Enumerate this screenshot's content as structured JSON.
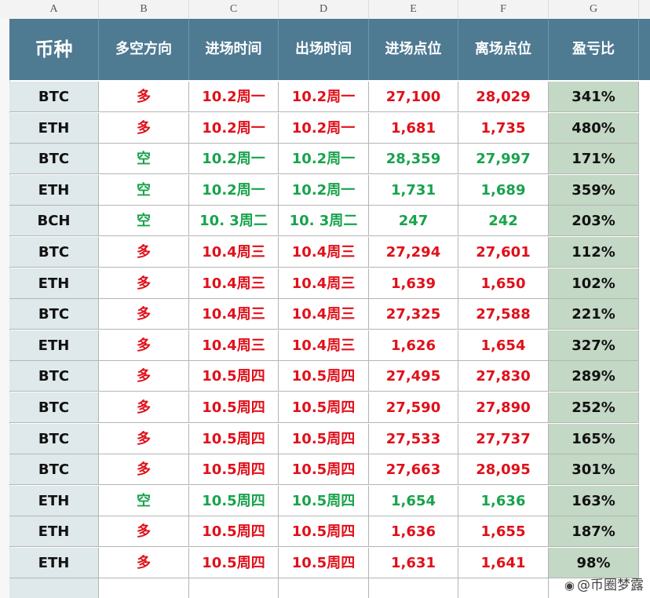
{
  "column_letters": [
    "A",
    "B",
    "C",
    "D",
    "E",
    "F",
    "G"
  ],
  "headers": [
    "币种",
    "多空方向",
    "进场时间",
    "出场时间",
    "进场点位",
    "离场点位",
    "盈亏比"
  ],
  "rows": [
    {
      "coin": "BTC",
      "direction": "多",
      "entry_time": "10.2周一",
      "exit_time": "10.2周一",
      "entry_price": "27,100",
      "exit_price": "28,029",
      "ratio": "341%",
      "side": "long"
    },
    {
      "coin": "ETH",
      "direction": "多",
      "entry_time": "10.2周一",
      "exit_time": "10.2周一",
      "entry_price": "1,681",
      "exit_price": "1,735",
      "ratio": "480%",
      "side": "long"
    },
    {
      "coin": "BTC",
      "direction": "空",
      "entry_time": "10.2周一",
      "exit_time": "10.2周一",
      "entry_price": "28,359",
      "exit_price": "27,997",
      "ratio": "171%",
      "side": "short"
    },
    {
      "coin": "ETH",
      "direction": "空",
      "entry_time": "10.2周一",
      "exit_time": "10.2周一",
      "entry_price": "1,731",
      "exit_price": "1,689",
      "ratio": "359%",
      "side": "short"
    },
    {
      "coin": "BCH",
      "direction": "空",
      "entry_time": "10. 3周二",
      "exit_time": "10. 3周二",
      "entry_price": "247",
      "exit_price": "242",
      "ratio": "203%",
      "side": "short"
    },
    {
      "coin": "BTC",
      "direction": "多",
      "entry_time": "10.4周三",
      "exit_time": "10.4周三",
      "entry_price": "27,294",
      "exit_price": "27,601",
      "ratio": "112%",
      "side": "long"
    },
    {
      "coin": "ETH",
      "direction": "多",
      "entry_time": "10.4周三",
      "exit_time": "10.4周三",
      "entry_price": "1,639",
      "exit_price": "1,650",
      "ratio": "102%",
      "side": "long"
    },
    {
      "coin": "BTC",
      "direction": "多",
      "entry_time": "10.4周三",
      "exit_time": "10.4周三",
      "entry_price": "27,325",
      "exit_price": "27,588",
      "ratio": "221%",
      "side": "long"
    },
    {
      "coin": "ETH",
      "direction": "多",
      "entry_time": "10.4周三",
      "exit_time": "10.4周三",
      "entry_price": "1,626",
      "exit_price": "1,654",
      "ratio": "327%",
      "side": "long"
    },
    {
      "coin": "BTC",
      "direction": "多",
      "entry_time": "10.5周四",
      "exit_time": "10.5周四",
      "entry_price": "27,495",
      "exit_price": "27,830",
      "ratio": "289%",
      "side": "long"
    },
    {
      "coin": "BTC",
      "direction": "多",
      "entry_time": "10.5周四",
      "exit_time": "10.5周四",
      "entry_price": "27,590",
      "exit_price": "27,890",
      "ratio": "252%",
      "side": "long"
    },
    {
      "coin": "BTC",
      "direction": "多",
      "entry_time": "10.5周四",
      "exit_time": "10.5周四",
      "entry_price": "27,533",
      "exit_price": "27,737",
      "ratio": "165%",
      "side": "long"
    },
    {
      "coin": "BTC",
      "direction": "多",
      "entry_time": "10.5周四",
      "exit_time": "10.5周四",
      "entry_price": "27,663",
      "exit_price": "28,095",
      "ratio": "301%",
      "side": "long"
    },
    {
      "coin": "ETH",
      "direction": "空",
      "entry_time": "10.5周四",
      "exit_time": "10.5周四",
      "entry_price": "1,654",
      "exit_price": "1,636",
      "ratio": "163%",
      "side": "short"
    },
    {
      "coin": "ETH",
      "direction": "多",
      "entry_time": "10.5周四",
      "exit_time": "10.5周四",
      "entry_price": "1,636",
      "exit_price": "1,655",
      "ratio": "187%",
      "side": "long"
    },
    {
      "coin": "ETH",
      "direction": "多",
      "entry_time": "10.5周四",
      "exit_time": "10.5周四",
      "entry_price": "1,631",
      "exit_price": "1,641",
      "ratio": "98%",
      "side": "long"
    }
  ],
  "colors": {
    "header_bg": "#4e7a92",
    "long": "#e0101a",
    "short": "#18a34c",
    "coin_bg": "#dfe8ea",
    "ratio_bg": "#c3d8c5"
  },
  "watermark": {
    "icon": "weibo-icon",
    "text": "@币圈梦露"
  }
}
